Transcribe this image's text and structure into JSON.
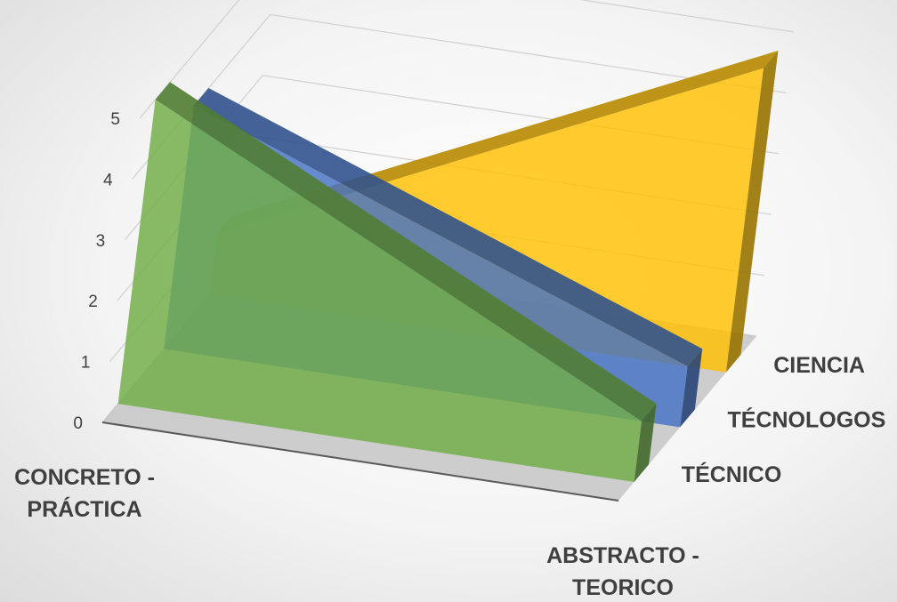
{
  "chart_data": {
    "type": "area",
    "variant": "3d",
    "title": "",
    "xlabel": "",
    "ylabel": "",
    "ylim": [
      0,
      5
    ],
    "yticks": [
      0,
      1,
      2,
      3,
      4,
      5
    ],
    "grid": true,
    "legend": "none",
    "categories": [
      "CONCRETO - PRÁCTICA",
      "ABSTRACTO - TEORICO"
    ],
    "series": [
      {
        "name": "TÉCNICO",
        "values": [
          5,
          1
        ],
        "color": "#70ad47"
      },
      {
        "name": "TÉCNOLOGOS",
        "values": [
          4,
          1
        ],
        "color": "#4472c4"
      },
      {
        "name": "CIENCIA",
        "values": [
          1,
          5
        ],
        "color": "#ffc000"
      }
    ]
  }
}
